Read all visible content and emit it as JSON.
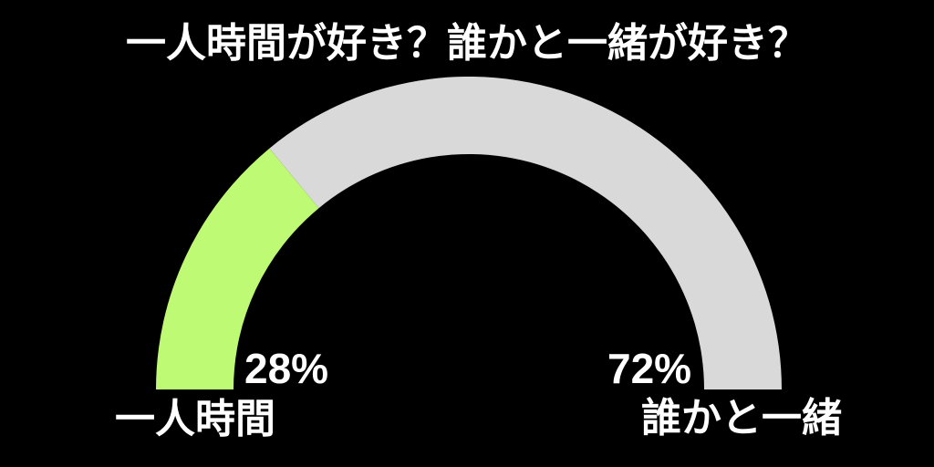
{
  "page": {
    "background_color": "#000000",
    "text_color": "#ffffff"
  },
  "chart_data": {
    "type": "pie",
    "variant": "semicircle-donut-gauge",
    "title": "一人時間が好き？誰かと一緒が好き？",
    "unit": "%",
    "total": 100,
    "start_angle_deg": 180,
    "end_angle_deg": 0,
    "grid": false,
    "legend_position": "labels-at-arc-ends",
    "segments": [
      {
        "label": "一人時間",
        "value": 28,
        "display": "28%",
        "color": "#befa73"
      },
      {
        "label": "誰かと一緒",
        "value": 72,
        "display": "72%",
        "color": "#d9d9d9"
      }
    ]
  }
}
